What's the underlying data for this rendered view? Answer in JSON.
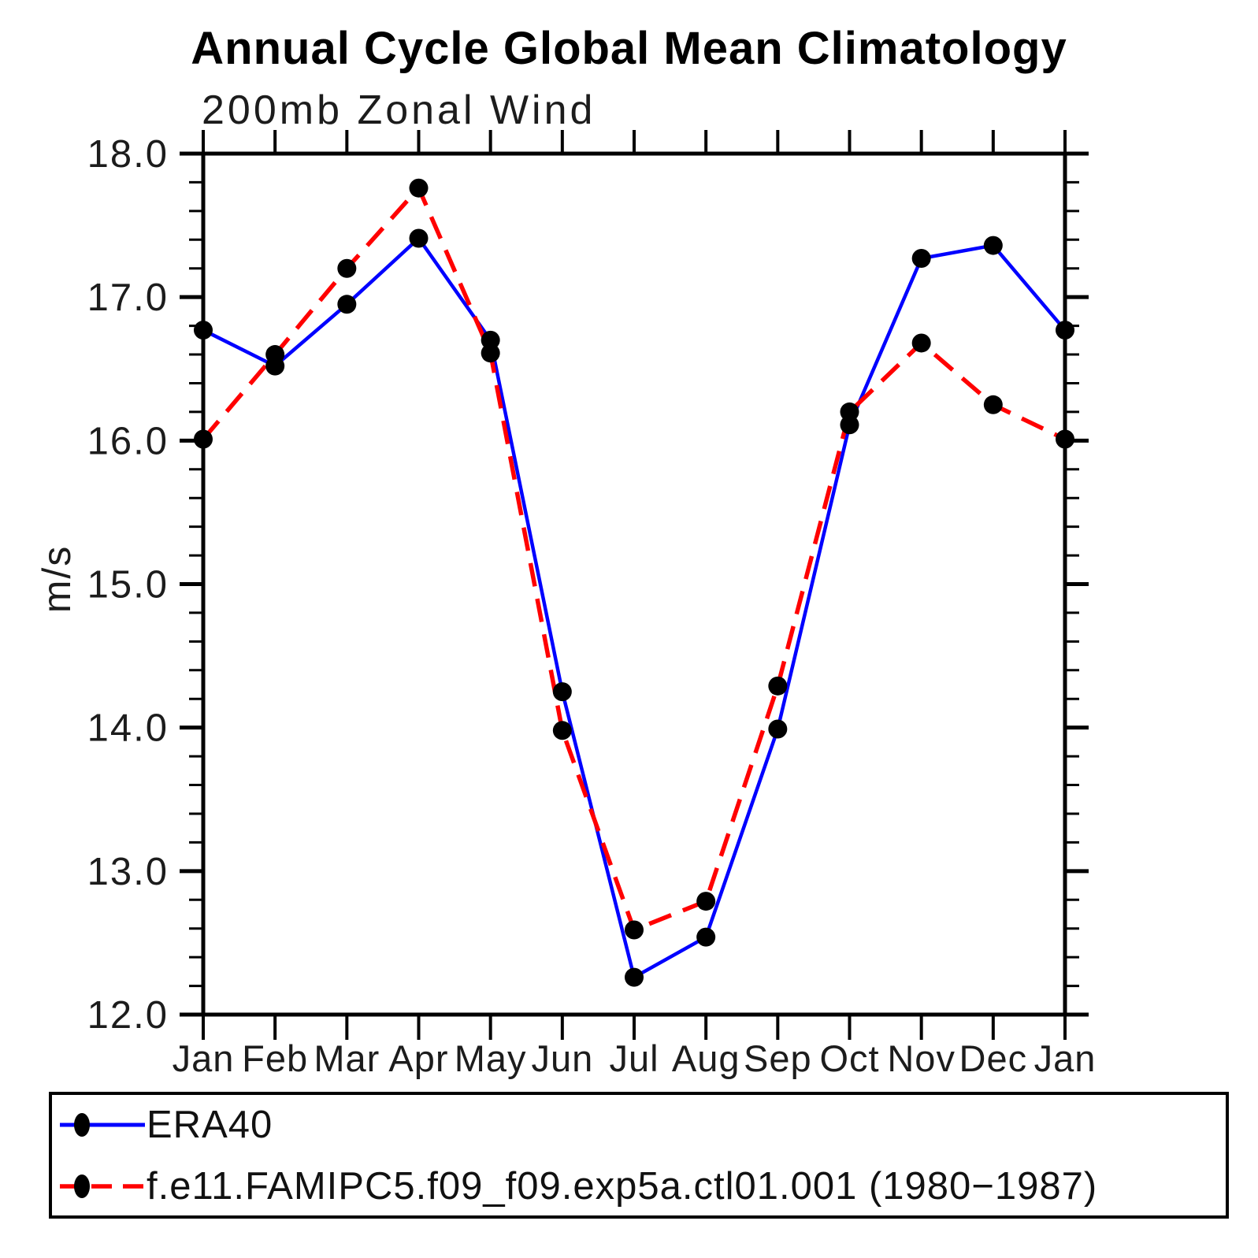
{
  "page": {
    "background": "#ffffff"
  },
  "colors": {
    "axis": "#000000",
    "text": "#1c1c1c",
    "era40_blue": "#0000ff",
    "model_red": "#ff0000",
    "marker_black": "#000000"
  },
  "chart_data": {
    "type": "line",
    "title": "Annual Cycle Global Mean Climatology",
    "subtitle": "200mb Zonal Wind",
    "ylabel": "m/s",
    "x_categories": [
      "Jan",
      "Feb",
      "Mar",
      "Apr",
      "May",
      "Jun",
      "Jul",
      "Aug",
      "Sep",
      "Oct",
      "Nov",
      "Dec",
      "Jan"
    ],
    "ylim": [
      12.0,
      18.0
    ],
    "ytick_labels": [
      "12.0",
      "13.0",
      "14.0",
      "15.0",
      "16.0",
      "17.0",
      "18.0"
    ],
    "ytick_major_step": 1.0,
    "ytick_minor_step": 0.2,
    "grid": "off",
    "frame": "box-with-outward-ticks",
    "legend_position": "bottom-left-box",
    "series": [
      {
        "name": "ERA40",
        "color": "#0000ff",
        "line_style": "solid",
        "marker": "filled-black-circle",
        "values": [
          16.77,
          16.52,
          16.95,
          17.41,
          16.7,
          14.25,
          12.26,
          12.54,
          13.99,
          16.11,
          17.27,
          17.36,
          16.77
        ]
      },
      {
        "name": "f.e11.FAMIPC5.f09_f09.exp5a.ctl01.001 (1980−1987)",
        "color": "#ff0000",
        "line_style": "dashed",
        "marker": "filled-black-circle",
        "values": [
          16.01,
          16.6,
          17.2,
          17.76,
          16.61,
          13.98,
          12.59,
          12.79,
          14.29,
          16.2,
          16.68,
          16.25,
          16.01
        ]
      }
    ]
  }
}
